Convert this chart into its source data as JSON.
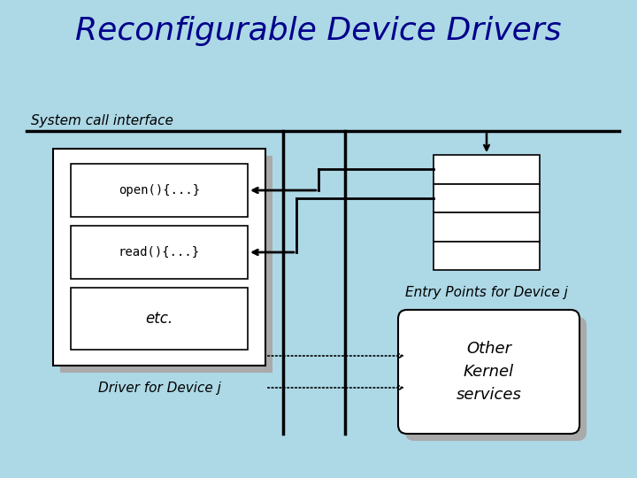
{
  "title": "Reconfigurable Device Drivers",
  "bg_color": "#add8e6",
  "title_color": "#00008B",
  "title_fontsize": 26,
  "syscall_label": "System call interface",
  "open_label": "open(){...}",
  "read_label": "read(){...}",
  "etc_label": "etc.",
  "driver_label": "Driver for Device j",
  "entry_points_label": "Entry Points for Device j",
  "kernel_label": "Other\nKernel\nservices",
  "box_facecolor": "#ffffff",
  "shadow_color": "#aaaaaa",
  "line_color": "#000000",
  "font_sans": "DejaVu Sans",
  "font_mono": "monospace"
}
